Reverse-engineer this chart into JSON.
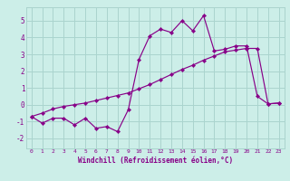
{
  "title": "",
  "xlabel": "Windchill (Refroidissement éolien,°C)",
  "background_color": "#cceee8",
  "grid_color": "#aad4ce",
  "line_color": "#880088",
  "xlim": [
    -0.5,
    23.5
  ],
  "ylim": [
    -2.6,
    5.8
  ],
  "yticks": [
    -2,
    -1,
    0,
    1,
    2,
    3,
    4,
    5
  ],
  "xticks": [
    0,
    1,
    2,
    3,
    4,
    5,
    6,
    7,
    8,
    9,
    10,
    11,
    12,
    13,
    14,
    15,
    16,
    17,
    18,
    19,
    20,
    21,
    22,
    23
  ],
  "line1_x": [
    0,
    1,
    2,
    3,
    4,
    5,
    6,
    7,
    8,
    9,
    10,
    11,
    12,
    13,
    14,
    15,
    16,
    17,
    18,
    19,
    20,
    21,
    22,
    23
  ],
  "line1_y": [
    -0.7,
    -1.1,
    -0.8,
    -0.8,
    -1.2,
    -0.8,
    -1.4,
    -1.3,
    -1.6,
    -0.3,
    2.7,
    4.1,
    4.5,
    4.3,
    5.0,
    4.4,
    5.3,
    3.2,
    3.3,
    3.5,
    3.5,
    0.5,
    0.05,
    0.1
  ],
  "line2_x": [
    0,
    1,
    2,
    3,
    4,
    5,
    6,
    7,
    8,
    9,
    10,
    11,
    12,
    13,
    14,
    15,
    16,
    17,
    18,
    19,
    20,
    21,
    22,
    23
  ],
  "line2_y": [
    -0.7,
    -0.5,
    -0.25,
    -0.1,
    0.0,
    0.1,
    0.25,
    0.4,
    0.55,
    0.7,
    0.95,
    1.2,
    1.5,
    1.8,
    2.1,
    2.35,
    2.65,
    2.9,
    3.15,
    3.25,
    3.35,
    3.35,
    0.05,
    0.1
  ]
}
